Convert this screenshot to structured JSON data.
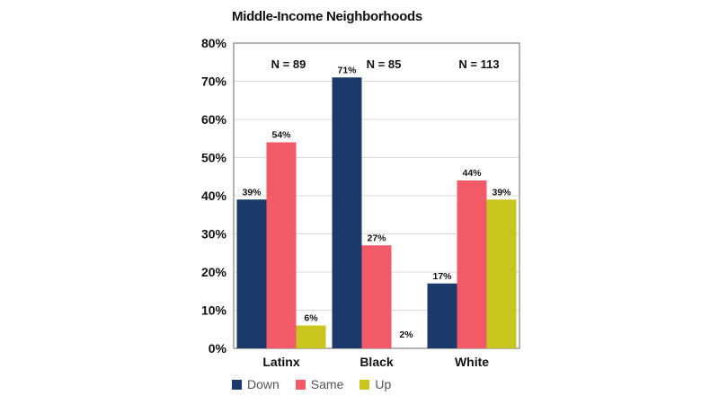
{
  "chart_data": {
    "type": "bar",
    "title": "Middle-Income Neighborhoods",
    "categories": [
      "Latinx",
      "Black",
      "White"
    ],
    "group_annotations": [
      "N = 89",
      "N = 85",
      "N = 113"
    ],
    "series": [
      {
        "name": "Down",
        "color": "#1b3a6b",
        "values": [
          39,
          71,
          17
        ],
        "labels": [
          "39%",
          "71%",
          "17%"
        ]
      },
      {
        "name": "Same",
        "color": "#f25a67",
        "values": [
          54,
          27,
          44
        ],
        "labels": [
          "54%",
          "27%",
          "44%"
        ]
      },
      {
        "name": "Up",
        "color": "#c9c61f",
        "values": [
          6,
          2,
          39
        ],
        "labels": [
          "6%",
          "2%",
          "39%"
        ]
      }
    ],
    "ylim": [
      0,
      80
    ],
    "yticks": [
      "0%",
      "10%",
      "20%",
      "30%",
      "40%",
      "50%",
      "60%",
      "70%",
      "80%"
    ],
    "grid": true,
    "legend_position": "bottom"
  }
}
